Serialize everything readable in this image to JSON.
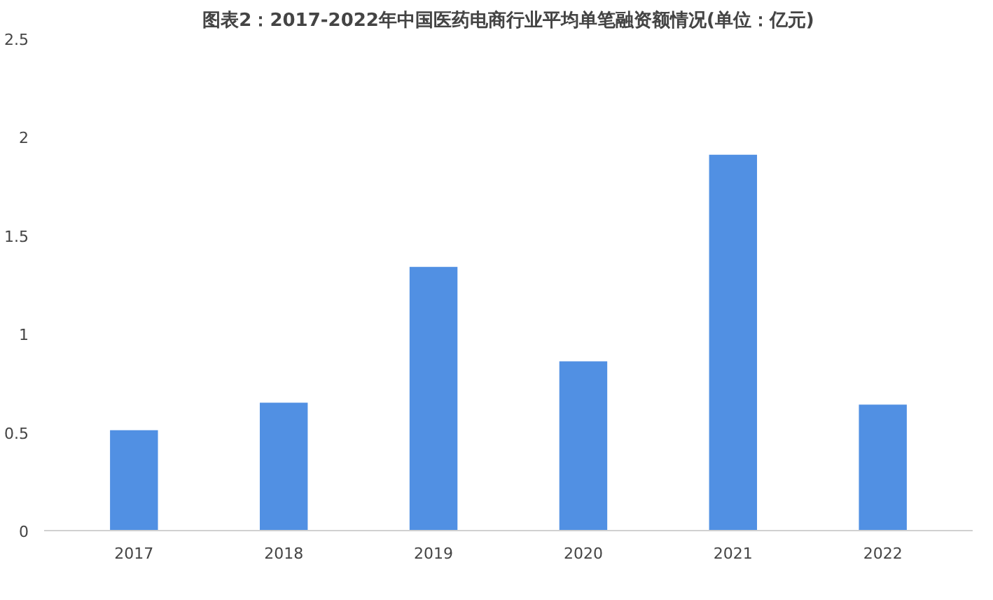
{
  "chart_data": {
    "type": "bar",
    "title": "图表2：2017-2022年中国医药电商行业平均单笔融资额情况(单位：亿元)",
    "categories": [
      "2017",
      "2018",
      "2019",
      "2020",
      "2021",
      "2022"
    ],
    "values": [
      0.51,
      0.65,
      1.34,
      0.86,
      1.91,
      0.64
    ],
    "color": "#5190e3",
    "ylim": [
      0,
      2.5
    ],
    "yticks": [
      0,
      0.5,
      1,
      1.5,
      2,
      2.5
    ],
    "grid": false
  }
}
